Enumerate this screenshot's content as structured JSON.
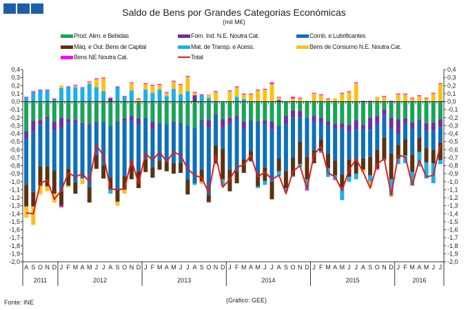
{
  "header": {
    "title": "Saldo de Bens por Grandes Categorias Económicas",
    "subtitle": "(mil M€)"
  },
  "footer": {
    "source": "Fonte: INE",
    "credit": "(Gráfico: GEE)"
  },
  "chart_data": {
    "type": "bar",
    "stacked": true,
    "title": "Saldo de Bens por Grandes Categorias Económicas",
    "unit": "(mil M€)",
    "ylim": [
      -2.0,
      0.4
    ],
    "ystep": 0.1,
    "yticks": [
      "0,4",
      "0,3",
      "0,2",
      "0,1",
      "0,0",
      "-0,1",
      "-0,2",
      "-0,3",
      "-0,4",
      "-0,5",
      "-0,6",
      "-0,7",
      "-0,8",
      "-0,9",
      "-1,0",
      "-1,1",
      "-1,2",
      "-1,3",
      "-1,4",
      "-1,5",
      "-1,6",
      "-1,7",
      "-1,8",
      "-1,9",
      "-2,0"
    ],
    "legend_position": "top",
    "months": [
      "A",
      "S",
      "O",
      "N",
      "D",
      "J",
      "F",
      "M",
      "A",
      "M",
      "J",
      "J",
      "A",
      "S",
      "O",
      "N",
      "D",
      "J",
      "F",
      "M",
      "A",
      "M",
      "J",
      "J",
      "A",
      "S",
      "O",
      "N",
      "D",
      "J",
      "F",
      "M",
      "A",
      "M",
      "J",
      "J",
      "A",
      "S",
      "O",
      "N",
      "D",
      "J",
      "F",
      "M",
      "A",
      "M",
      "J",
      "J",
      "A",
      "S",
      "O",
      "N",
      "D",
      "J",
      "F",
      "M",
      "A",
      "M",
      "J",
      "J"
    ],
    "years": [
      {
        "label": "2011",
        "months": 5
      },
      {
        "label": "2012",
        "months": 12
      },
      {
        "label": "2013",
        "months": 12
      },
      {
        "label": "2014",
        "months": 12
      },
      {
        "label": "2015",
        "months": 12
      },
      {
        "label": "2016",
        "months": 7
      }
    ],
    "series": [
      {
        "name": "Prod. Alim. e Bebidas",
        "color": "#1aa35a",
        "values": [
          -0.37,
          -0.24,
          -0.23,
          -0.19,
          -0.25,
          -0.2,
          -0.22,
          -0.23,
          -0.27,
          -0.28,
          -0.25,
          -0.25,
          -0.31,
          -0.25,
          -0.21,
          -0.18,
          -0.21,
          -0.2,
          -0.25,
          -0.27,
          -0.28,
          -0.25,
          -0.27,
          -0.3,
          -0.33,
          -0.23,
          -0.23,
          -0.16,
          -0.22,
          -0.2,
          -0.18,
          -0.25,
          -0.23,
          -0.25,
          -0.23,
          -0.25,
          -0.3,
          -0.18,
          -0.11,
          -0.12,
          -0.2,
          -0.18,
          -0.2,
          -0.25,
          -0.28,
          -0.27,
          -0.29,
          -0.23,
          -0.29,
          -0.2,
          -0.18,
          -0.1,
          -0.2,
          -0.22,
          -0.21,
          -0.26,
          -0.23,
          -0.27,
          -0.26,
          -0.22
        ]
      },
      {
        "name": "Forn. Ind. N.E. Noutra Cat.",
        "color": "#7030a0",
        "values": [
          -0.09,
          -0.14,
          -0.06,
          -0.03,
          -0.11,
          -0.13,
          -0.04,
          -0.04,
          -0.02,
          -0.02,
          -0.02,
          0,
          0.04,
          -0.02,
          -0.03,
          -0.06,
          -0.07,
          0,
          -0.1,
          -0.01,
          0,
          -0.02,
          -0.02,
          0,
          0.08,
          -0.03,
          -0.1,
          -0.02,
          -0.11,
          -0.08,
          -0.03,
          -0.09,
          -0.01,
          -0.02,
          -0.05,
          -0.1,
          0.02,
          -0.1,
          -0.09,
          -0.08,
          0,
          -0.07,
          -0.07,
          -0.05,
          -0.05,
          -0.06,
          -0.09,
          -0.12,
          -0.05,
          -0.15,
          -0.1,
          -0.07,
          -0.14,
          -0.18,
          -0.06,
          -0.08,
          -0.03,
          -0.09,
          -0.1,
          -0.1
        ]
      },
      {
        "name": "Comb. e Lubrificantes",
        "color": "#0e6fba",
        "values": [
          -0.58,
          -0.75,
          -0.52,
          -0.59,
          -0.5,
          -0.79,
          -0.58,
          -0.74,
          -0.67,
          -0.77,
          -0.4,
          -0.55,
          -0.64,
          -0.83,
          -0.69,
          -0.56,
          -0.59,
          -0.52,
          -0.47,
          -0.46,
          -0.47,
          -0.5,
          -0.47,
          -0.67,
          -0.69,
          -0.59,
          -0.84,
          -0.37,
          -0.26,
          -0.57,
          -0.66,
          -0.38,
          -0.38,
          -0.63,
          -0.54,
          -0.65,
          -0.41,
          -0.59,
          -0.5,
          -0.3,
          -0.49,
          -0.36,
          -0.2,
          -0.35,
          -0.41,
          -0.58,
          -0.34,
          -0.37,
          -0.37,
          -0.34,
          -0.32,
          -0.28,
          -0.31,
          -0.14,
          -0.2,
          -0.32,
          -0.19,
          -0.22,
          -0.24,
          -0.19
        ]
      },
      {
        "name": "Máq. e Out. Bens de Capital",
        "color": "#5b3310",
        "values": [
          -0.27,
          -0.18,
          -0.24,
          -0.25,
          -0.29,
          -0.18,
          -0.21,
          -0.14,
          0,
          -0.19,
          -0.17,
          -0.16,
          -0.15,
          -0.15,
          -0.17,
          -0.17,
          -0.21,
          -0.16,
          -0.13,
          -0.11,
          -0.12,
          -0.13,
          -0.13,
          -0.19,
          0,
          -0.15,
          -0.08,
          -0.22,
          -0.38,
          -0.27,
          -0.15,
          -0.17,
          -0.12,
          -0.16,
          -0.17,
          -0.22,
          -0.16,
          -0.21,
          -0.23,
          -0.28,
          -0.28,
          -0.16,
          -0.15,
          -0.18,
          -0.18,
          -0.16,
          -0.22,
          -0.18,
          -0.14,
          -0.23,
          -0.23,
          -0.27,
          -0.32,
          -0.17,
          -0.2,
          -0.22,
          -0.18,
          -0.18,
          -0.17,
          -0.22
        ]
      },
      {
        "name": "Mat. de Transp. e Acess.",
        "color": "#1cb0e6",
        "values": [
          0.05,
          0.12,
          0.14,
          0.14,
          0.03,
          0.17,
          0.18,
          0.18,
          0.17,
          0.22,
          0.18,
          0.13,
          -0.05,
          0.18,
          0.06,
          0.14,
          0,
          0.15,
          0.11,
          0.15,
          0.07,
          0.16,
          0.09,
          0.13,
          -0.02,
          0.08,
          0.05,
          -0.01,
          -0.08,
          0,
          0.06,
          0.03,
          -0.01,
          -0.02,
          -0.05,
          0,
          -0.06,
          -0.04,
          -0.01,
          -0.04,
          -0.13,
          0,
          -0.02,
          -0.11,
          -0.05,
          -0.16,
          -0.06,
          -0.07,
          0,
          -0.08,
          0,
          -0.02,
          -0.2,
          -0.07,
          -0.1,
          -0.17,
          -0.18,
          -0.2,
          -0.25,
          -0.05
        ]
      },
      {
        "name": "Bens de Consumo N.E. Noutra Cat.",
        "color": "#f9c21b",
        "values": [
          -0.14,
          -0.23,
          -0.11,
          -0.06,
          -0.11,
          0.03,
          -0.02,
          0.02,
          -0.07,
          0.02,
          0.1,
          0.16,
          0,
          -0.05,
          -0.05,
          0.09,
          0.03,
          0.07,
          0.09,
          0.06,
          0.04,
          0.09,
          0.12,
          0.18,
          0.03,
          -0.03,
          0.04,
          0.12,
          0,
          0.13,
          0.12,
          0.06,
          0.09,
          0.14,
          0.15,
          0.22,
          0.03,
          0,
          0.04,
          0.04,
          0.01,
          0.1,
          0.08,
          0.03,
          0.04,
          0.1,
          0.12,
          0.23,
          -0.03,
          -0.05,
          0.06,
          0.06,
          -0.02,
          0.09,
          0.09,
          0.04,
          0.07,
          0.04,
          0.1,
          0.22
        ]
      },
      {
        "name": "Bens NE Noutra Cat.",
        "color": "#ff00ff",
        "values": [
          0.01,
          0.01,
          0.01,
          0.01,
          0.01,
          -0.02,
          0.01,
          0.01,
          0.01,
          0.01,
          0.01,
          0.01,
          0.01,
          0.01,
          0.01,
          0.01,
          0.01,
          0.01,
          0.01,
          0.01,
          0.01,
          0.01,
          0.01,
          0.01,
          0.01,
          0.01,
          -0.01,
          0.01,
          0,
          0.01,
          0.01,
          0.01,
          0.01,
          0.01,
          0.01,
          0.02,
          0.01,
          0,
          0.02,
          0.01,
          -0.01,
          0.01,
          0.01,
          0.01,
          -0.01,
          0.01,
          0.01,
          0.01,
          0.01,
          0.01,
          -0.02,
          0.01,
          0.01,
          0.01,
          0.01,
          0.01,
          0.01,
          0.01,
          0.01,
          0.01
        ]
      }
    ],
    "total": {
      "name": "Total",
      "color": "#e41b1b",
      "values": [
        -1.39,
        -1.4,
        -1.02,
        -0.98,
        -1.22,
        -1.11,
        -0.89,
        -0.94,
        -0.9,
        -1.0,
        -0.55,
        -0.67,
        -1.09,
        -1.1,
        -1.09,
        -0.73,
        -1.02,
        -0.65,
        -0.73,
        -0.63,
        -0.75,
        -0.63,
        -0.67,
        -0.84,
        -0.92,
        -0.95,
        -1.14,
        -0.67,
        -1.07,
        -0.97,
        -0.82,
        -0.79,
        -0.67,
        -0.94,
        -0.88,
        -0.97,
        -0.92,
        -1.15,
        -0.87,
        -0.8,
        -1.09,
        -0.66,
        -0.56,
        -0.89,
        -0.94,
        -1.11,
        -0.85,
        -0.72,
        -0.88,
        -1.08,
        -0.78,
        -0.71,
        -1.17,
        -0.67,
        -0.69,
        -1.04,
        -0.73,
        -0.94,
        -0.92,
        -0.54
      ]
    }
  }
}
